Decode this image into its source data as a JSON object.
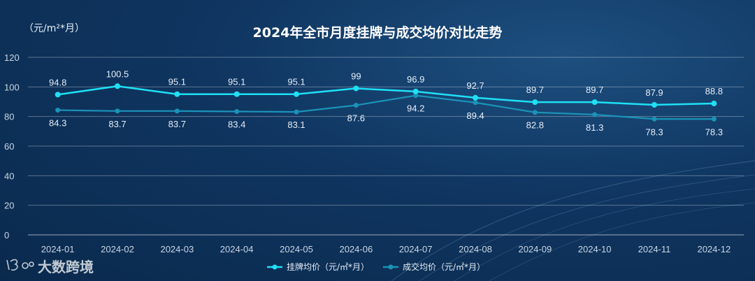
{
  "chart_data": {
    "type": "line",
    "title": "2024年全市月度挂牌与成交均价对比走势",
    "unit_label": "（元/m²*月）",
    "ylim": [
      0,
      120
    ],
    "yticks": [
      0,
      20,
      40,
      60,
      80,
      100,
      120
    ],
    "categories": [
      "2024-01",
      "2024-02",
      "2024-03",
      "2024-04",
      "2024-05",
      "2024-06",
      "2024-07",
      "2024-08",
      "2024-09",
      "2024-10",
      "2024-11",
      "2024-12"
    ],
    "series": [
      {
        "name": "挂牌均价（元/㎡*月）",
        "color": "#1fe0f5",
        "values": [
          94.8,
          100.5,
          95.1,
          95.1,
          95.1,
          99,
          96.9,
          92.7,
          89.7,
          89.7,
          87.9,
          88.8
        ]
      },
      {
        "name": "成交均价（元/㎡*月）",
        "color": "#1b93b8",
        "values": [
          84.3,
          83.7,
          83.7,
          83.4,
          83.1,
          87.6,
          94.2,
          89.4,
          82.8,
          81.3,
          78.3,
          78.3
        ]
      }
    ],
    "legend_position": "bottom-center",
    "grid": true
  },
  "watermark": {
    "text": "大数跨境"
  }
}
